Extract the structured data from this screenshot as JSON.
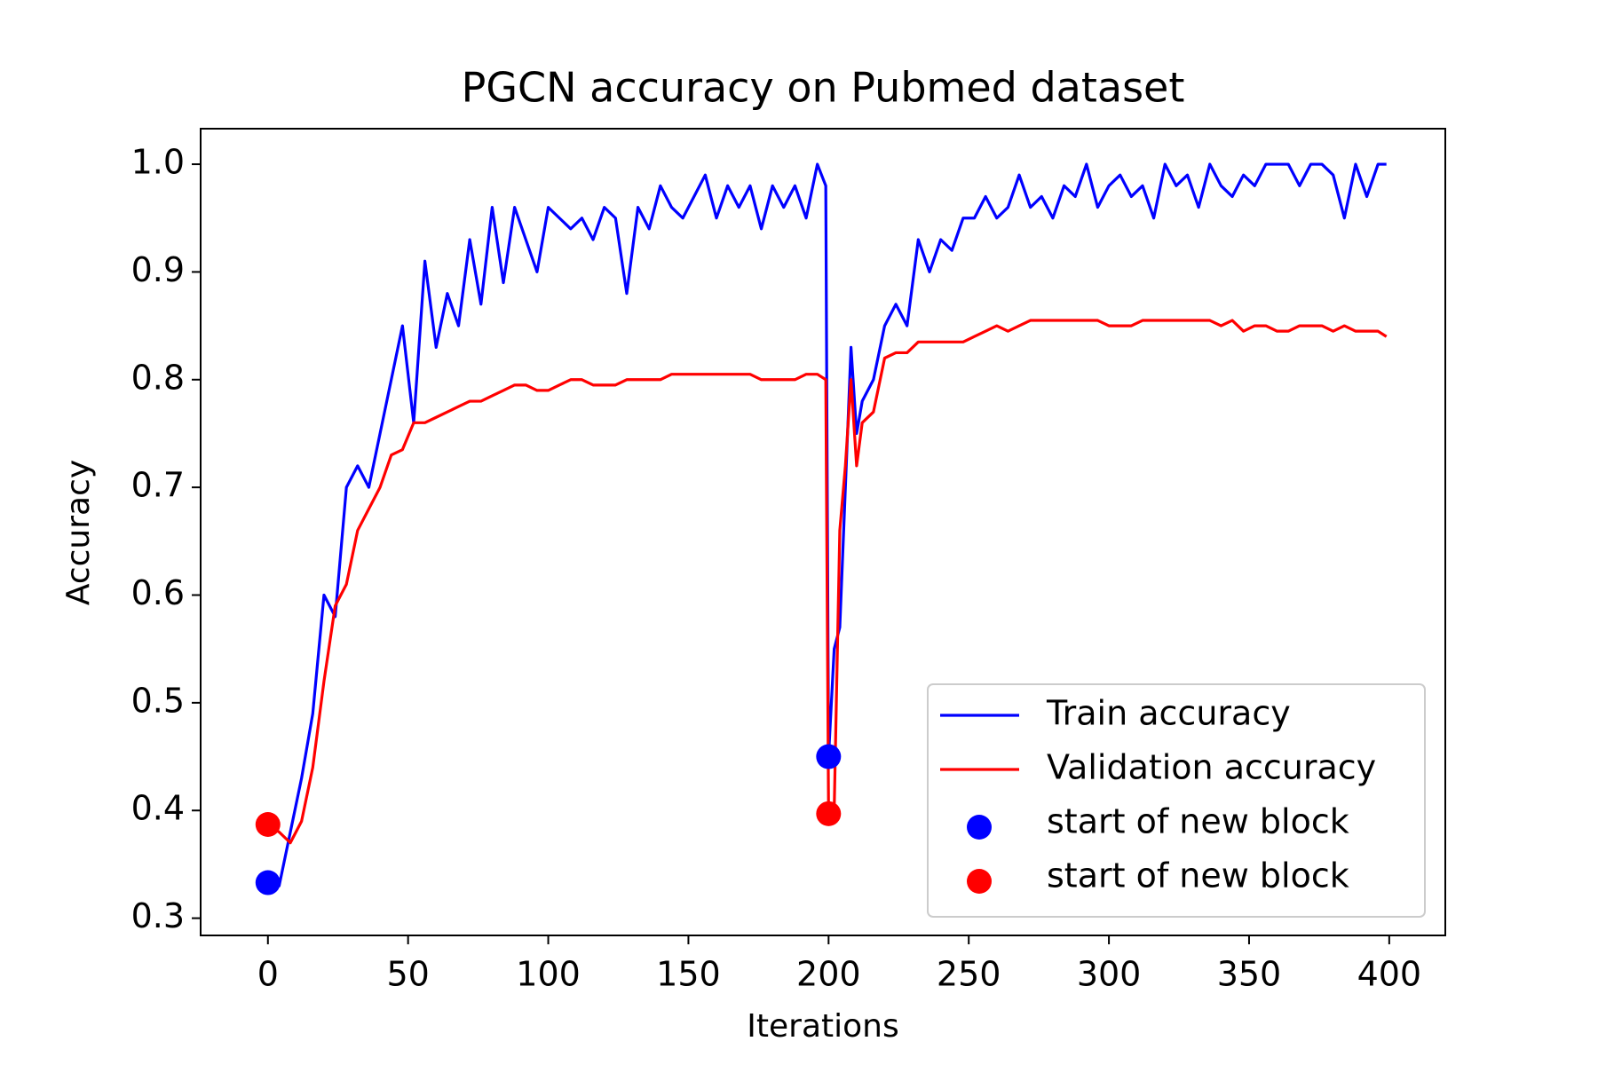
{
  "chart_data": {
    "type": "line",
    "title": "PGCN accuracy on Pubmed dataset",
    "x_label": "Iterations",
    "y_label": "Accuracy",
    "x": [
      0,
      4,
      8,
      12,
      16,
      20,
      24,
      28,
      32,
      36,
      40,
      44,
      48,
      52,
      56,
      60,
      64,
      68,
      72,
      76,
      80,
      84,
      88,
      92,
      96,
      100,
      104,
      108,
      112,
      116,
      120,
      124,
      128,
      132,
      136,
      140,
      144,
      148,
      152,
      156,
      160,
      164,
      168,
      172,
      176,
      180,
      184,
      188,
      192,
      196,
      199,
      200,
      202,
      204,
      206,
      208,
      210,
      212,
      216,
      220,
      224,
      228,
      232,
      236,
      240,
      244,
      248,
      252,
      256,
      260,
      264,
      268,
      272,
      276,
      280,
      284,
      288,
      292,
      296,
      300,
      304,
      308,
      312,
      316,
      320,
      324,
      328,
      332,
      336,
      340,
      344,
      348,
      352,
      356,
      360,
      364,
      368,
      372,
      376,
      380,
      384,
      388,
      392,
      396,
      399
    ],
    "series": [
      {
        "name": "Train accuracy",
        "type": "line",
        "color": "#0000ff",
        "values": [
          0.333,
          0.33,
          0.38,
          0.43,
          0.49,
          0.6,
          0.58,
          0.7,
          0.72,
          0.7,
          0.75,
          0.8,
          0.85,
          0.76,
          0.91,
          0.83,
          0.88,
          0.85,
          0.93,
          0.87,
          0.96,
          0.89,
          0.96,
          0.93,
          0.9,
          0.96,
          0.95,
          0.94,
          0.95,
          0.93,
          0.96,
          0.95,
          0.88,
          0.96,
          0.94,
          0.98,
          0.96,
          0.95,
          0.97,
          0.99,
          0.95,
          0.98,
          0.96,
          0.98,
          0.94,
          0.98,
          0.96,
          0.98,
          0.95,
          1.0,
          0.98,
          0.45,
          0.55,
          0.57,
          0.7,
          0.83,
          0.75,
          0.78,
          0.8,
          0.85,
          0.87,
          0.85,
          0.93,
          0.9,
          0.93,
          0.92,
          0.95,
          0.95,
          0.97,
          0.95,
          0.96,
          0.99,
          0.96,
          0.97,
          0.95,
          0.98,
          0.97,
          1.0,
          0.96,
          0.98,
          0.99,
          0.97,
          0.98,
          0.95,
          1.0,
          0.98,
          0.99,
          0.96,
          1.0,
          0.98,
          0.97,
          0.99,
          0.98,
          1.0,
          1.0,
          1.0,
          0.98,
          1.0,
          1.0,
          0.99,
          0.95,
          1.0,
          0.97,
          1.0,
          1.0
        ]
      },
      {
        "name": "Validation accuracy",
        "type": "line",
        "color": "#ff0000",
        "values": [
          0.387,
          0.38,
          0.37,
          0.39,
          0.44,
          0.52,
          0.59,
          0.61,
          0.66,
          0.68,
          0.7,
          0.73,
          0.735,
          0.76,
          0.76,
          0.765,
          0.77,
          0.775,
          0.78,
          0.78,
          0.785,
          0.79,
          0.795,
          0.795,
          0.79,
          0.79,
          0.795,
          0.8,
          0.8,
          0.795,
          0.795,
          0.795,
          0.8,
          0.8,
          0.8,
          0.8,
          0.805,
          0.805,
          0.805,
          0.805,
          0.805,
          0.805,
          0.805,
          0.805,
          0.8,
          0.8,
          0.8,
          0.8,
          0.805,
          0.805,
          0.8,
          0.397,
          0.4,
          0.66,
          0.72,
          0.8,
          0.72,
          0.76,
          0.77,
          0.82,
          0.825,
          0.825,
          0.835,
          0.835,
          0.835,
          0.835,
          0.835,
          0.84,
          0.845,
          0.85,
          0.845,
          0.85,
          0.855,
          0.855,
          0.855,
          0.855,
          0.855,
          0.855,
          0.855,
          0.85,
          0.85,
          0.85,
          0.855,
          0.855,
          0.855,
          0.855,
          0.855,
          0.855,
          0.855,
          0.85,
          0.855,
          0.845,
          0.85,
          0.85,
          0.845,
          0.845,
          0.85,
          0.85,
          0.85,
          0.845,
          0.85,
          0.845,
          0.845,
          0.845,
          0.84
        ]
      },
      {
        "name": "start of new block",
        "type": "scatter",
        "color": "#0000ff",
        "x": [
          0,
          200
        ],
        "values": [
          0.333,
          0.45
        ]
      },
      {
        "name": "start of new block",
        "type": "scatter",
        "color": "#ff0000",
        "x": [
          0,
          200
        ],
        "values": [
          0.387,
          0.397
        ]
      }
    ],
    "xlim": [
      -24,
      420
    ],
    "ylim": [
      0.284,
      1.033
    ],
    "xticks": [
      0,
      50,
      100,
      150,
      200,
      250,
      300,
      350,
      400
    ],
    "yticks": [
      {
        "value": 0.3,
        "label": "0.3"
      },
      {
        "value": 0.4,
        "label": "0.4"
      },
      {
        "value": 0.5,
        "label": "0.5"
      },
      {
        "value": 0.6,
        "label": "0.6"
      },
      {
        "value": 0.7,
        "label": "0.7"
      },
      {
        "value": 0.8,
        "label": "0.8"
      },
      {
        "value": 0.9,
        "label": "0.9"
      },
      {
        "value": 1.0,
        "label": "1.0"
      }
    ],
    "grid": false,
    "legend": "lower right"
  }
}
